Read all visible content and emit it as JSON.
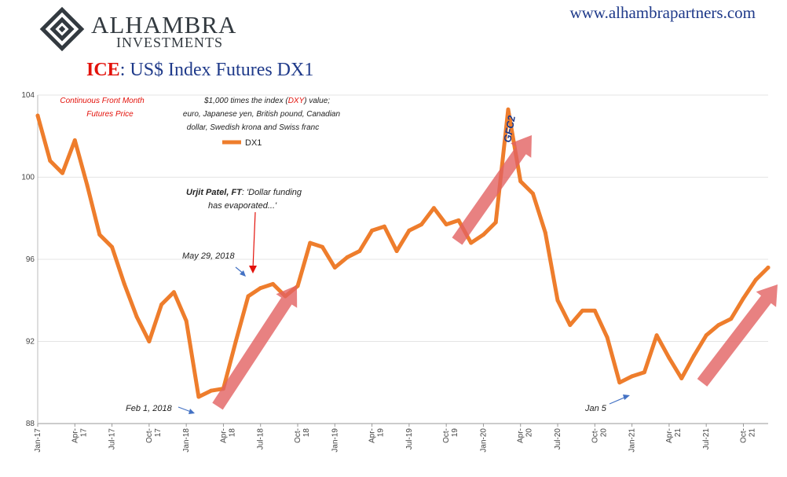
{
  "header": {
    "brand_name": "ALHAMBRA",
    "brand_sub": "INVESTMENTS",
    "website": "www.alhambrapartners.com",
    "title_prefix": "ICE",
    "title_rest": ": US$ Index Futures DX1"
  },
  "colors": {
    "line": "#ee7d2c",
    "arrow": "#e26161",
    "annotation_red": "#e3120b",
    "annotation_blue": "#4472c4",
    "title_blue": "#1f3a8a"
  },
  "chart_data": {
    "type": "line",
    "ylim": [
      88,
      104
    ],
    "y_ticks": [
      "88",
      "92",
      "96",
      "100",
      "104"
    ],
    "x_ticks": [
      {
        "label": [
          "Jan-17"
        ],
        "date": "2017-01"
      },
      {
        "label": [
          "Apr-",
          "17"
        ],
        "date": "2017-04"
      },
      {
        "label": [
          "Jul-17"
        ],
        "date": "2017-07"
      },
      {
        "label": [
          "Oct-",
          "17"
        ],
        "date": "2017-10"
      },
      {
        "label": [
          "Jan-18"
        ],
        "date": "2018-01"
      },
      {
        "label": [
          "Apr-",
          "18"
        ],
        "date": "2018-04"
      },
      {
        "label": [
          "Jul-18"
        ],
        "date": "2018-07"
      },
      {
        "label": [
          "Oct-",
          "18"
        ],
        "date": "2018-10"
      },
      {
        "label": [
          "Jan-19"
        ],
        "date": "2019-01"
      },
      {
        "label": [
          "Apr-",
          "19"
        ],
        "date": "2019-04"
      },
      {
        "label": [
          "Jul-19"
        ],
        "date": "2019-07"
      },
      {
        "label": [
          "Oct-",
          "19"
        ],
        "date": "2019-10"
      },
      {
        "label": [
          "Jan-20"
        ],
        "date": "2020-01"
      },
      {
        "label": [
          "Apr-",
          "20"
        ],
        "date": "2020-04"
      },
      {
        "label": [
          "Jul-20"
        ],
        "date": "2020-07"
      },
      {
        "label": [
          "Oct-",
          "20"
        ],
        "date": "2020-10"
      },
      {
        "label": [
          "Jan-21"
        ],
        "date": "2021-01"
      },
      {
        "label": [
          "Apr-",
          "21"
        ],
        "date": "2021-04"
      },
      {
        "label": [
          "Jul-21"
        ],
        "date": "2021-07"
      },
      {
        "label": [
          "Oct-",
          "21"
        ],
        "date": "2021-10"
      }
    ],
    "x_range": [
      "2017-01",
      "2021-12"
    ],
    "grid": true,
    "legend_position": "top-left",
    "series": [
      {
        "name": "DX1",
        "points": [
          [
            "2017-01",
            103.0
          ],
          [
            "2017-02",
            100.8
          ],
          [
            "2017-03",
            100.2
          ],
          [
            "2017-04",
            101.8
          ],
          [
            "2017-05",
            99.6
          ],
          [
            "2017-06",
            97.2
          ],
          [
            "2017-07",
            96.6
          ],
          [
            "2017-08",
            94.8
          ],
          [
            "2017-09",
            93.2
          ],
          [
            "2017-10",
            92.0
          ],
          [
            "2017-11",
            93.8
          ],
          [
            "2017-12",
            94.4
          ],
          [
            "2018-01",
            93.0
          ],
          [
            "2018-02",
            89.3
          ],
          [
            "2018-03",
            89.6
          ],
          [
            "2018-04",
            89.7
          ],
          [
            "2018-05",
            92.0
          ],
          [
            "2018-06",
            94.2
          ],
          [
            "2018-07",
            94.6
          ],
          [
            "2018-08",
            94.8
          ],
          [
            "2018-09",
            94.2
          ],
          [
            "2018-10",
            94.7
          ],
          [
            "2018-11",
            96.8
          ],
          [
            "2018-12",
            96.6
          ],
          [
            "2019-01",
            95.6
          ],
          [
            "2019-02",
            96.1
          ],
          [
            "2019-03",
            96.4
          ],
          [
            "2019-04",
            97.4
          ],
          [
            "2019-05",
            97.6
          ],
          [
            "2019-06",
            96.4
          ],
          [
            "2019-07",
            97.4
          ],
          [
            "2019-08",
            97.7
          ],
          [
            "2019-09",
            98.5
          ],
          [
            "2019-10",
            97.7
          ],
          [
            "2019-11",
            97.9
          ],
          [
            "2019-12",
            96.8
          ],
          [
            "2020-01",
            97.2
          ],
          [
            "2020-02",
            97.8
          ],
          [
            "2020-03",
            103.3
          ],
          [
            "2020-04",
            99.8
          ],
          [
            "2020-05",
            99.2
          ],
          [
            "2020-06",
            97.3
          ],
          [
            "2020-07",
            94.0
          ],
          [
            "2020-08",
            92.8
          ],
          [
            "2020-09",
            93.5
          ],
          [
            "2020-10",
            93.5
          ],
          [
            "2020-11",
            92.2
          ],
          [
            "2020-12",
            90.0
          ],
          [
            "2021-01",
            90.3
          ],
          [
            "2021-02",
            90.5
          ],
          [
            "2021-03",
            92.3
          ],
          [
            "2021-04",
            91.2
          ],
          [
            "2021-05",
            90.2
          ],
          [
            "2021-06",
            91.3
          ],
          [
            "2021-07",
            92.3
          ],
          [
            "2021-08",
            92.8
          ],
          [
            "2021-09",
            93.1
          ],
          [
            "2021-10",
            94.1
          ],
          [
            "2021-11",
            95.0
          ],
          [
            "2021-12",
            95.6
          ]
        ]
      }
    ],
    "annotations": {
      "continuous": [
        "Continuous  Front Month",
        "Futures Price"
      ],
      "description": [
        "$1,000 times the index (",
        "DXY",
        ") value;",
        "euro, Japanese yen, British pound, Canadian",
        "dollar, Swedish krona and Swiss franc"
      ],
      "patel": [
        "Urjit Patel, FT",
        ": 'Dollar funding",
        "has evaporated...'"
      ],
      "may29": "May 29, 2018",
      "feb1": "Feb 1, 2018",
      "jan5": "Jan 5",
      "gfc2": "GFC2"
    }
  }
}
